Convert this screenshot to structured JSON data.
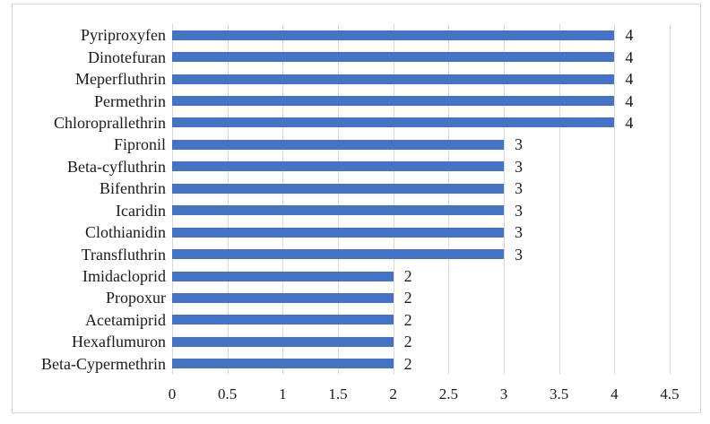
{
  "chart_data": {
    "type": "bar",
    "orientation": "horizontal",
    "title": "",
    "xlabel": "",
    "ylabel": "",
    "legend": "none",
    "grid": "vertical-major",
    "xlim": [
      0,
      4.5
    ],
    "categories": [
      "Pyriproxyfen",
      "Dinotefuran",
      "Meperfluthrin",
      "Permethrin",
      "Chloroprallethrin",
      "Fipronil",
      "Beta-cyfluthrin",
      "Bifenthrin",
      "Icaridin",
      "Clothianidin",
      "Transfluthrin",
      "Imidacloprid",
      "Propoxur",
      "Acetamiprid",
      "Hexaflumuron",
      "Beta-Cypermethrin"
    ],
    "values": [
      4,
      4,
      4,
      4,
      4,
      3,
      3,
      3,
      3,
      3,
      3,
      2,
      2,
      2,
      2,
      2
    ],
    "data_labels": [
      "4",
      "4",
      "4",
      "4",
      "4",
      "3",
      "3",
      "3",
      "3",
      "3",
      "3",
      "2",
      "2",
      "2",
      "2",
      "2"
    ],
    "x_ticks": [
      0,
      0.5,
      1,
      1.5,
      2,
      2.5,
      3,
      3.5,
      4,
      4.5
    ],
    "x_tick_labels": [
      "0",
      "0.5",
      "1",
      "1.5",
      "2",
      "2.5",
      "3",
      "3.5",
      "4",
      "4.5"
    ],
    "colors": {
      "bar": "#4472C4",
      "gridline": "#D9D9D9",
      "frame_border": "#D6D6D6",
      "text": "#1A1A1A",
      "background": "#FFFFFF"
    }
  }
}
